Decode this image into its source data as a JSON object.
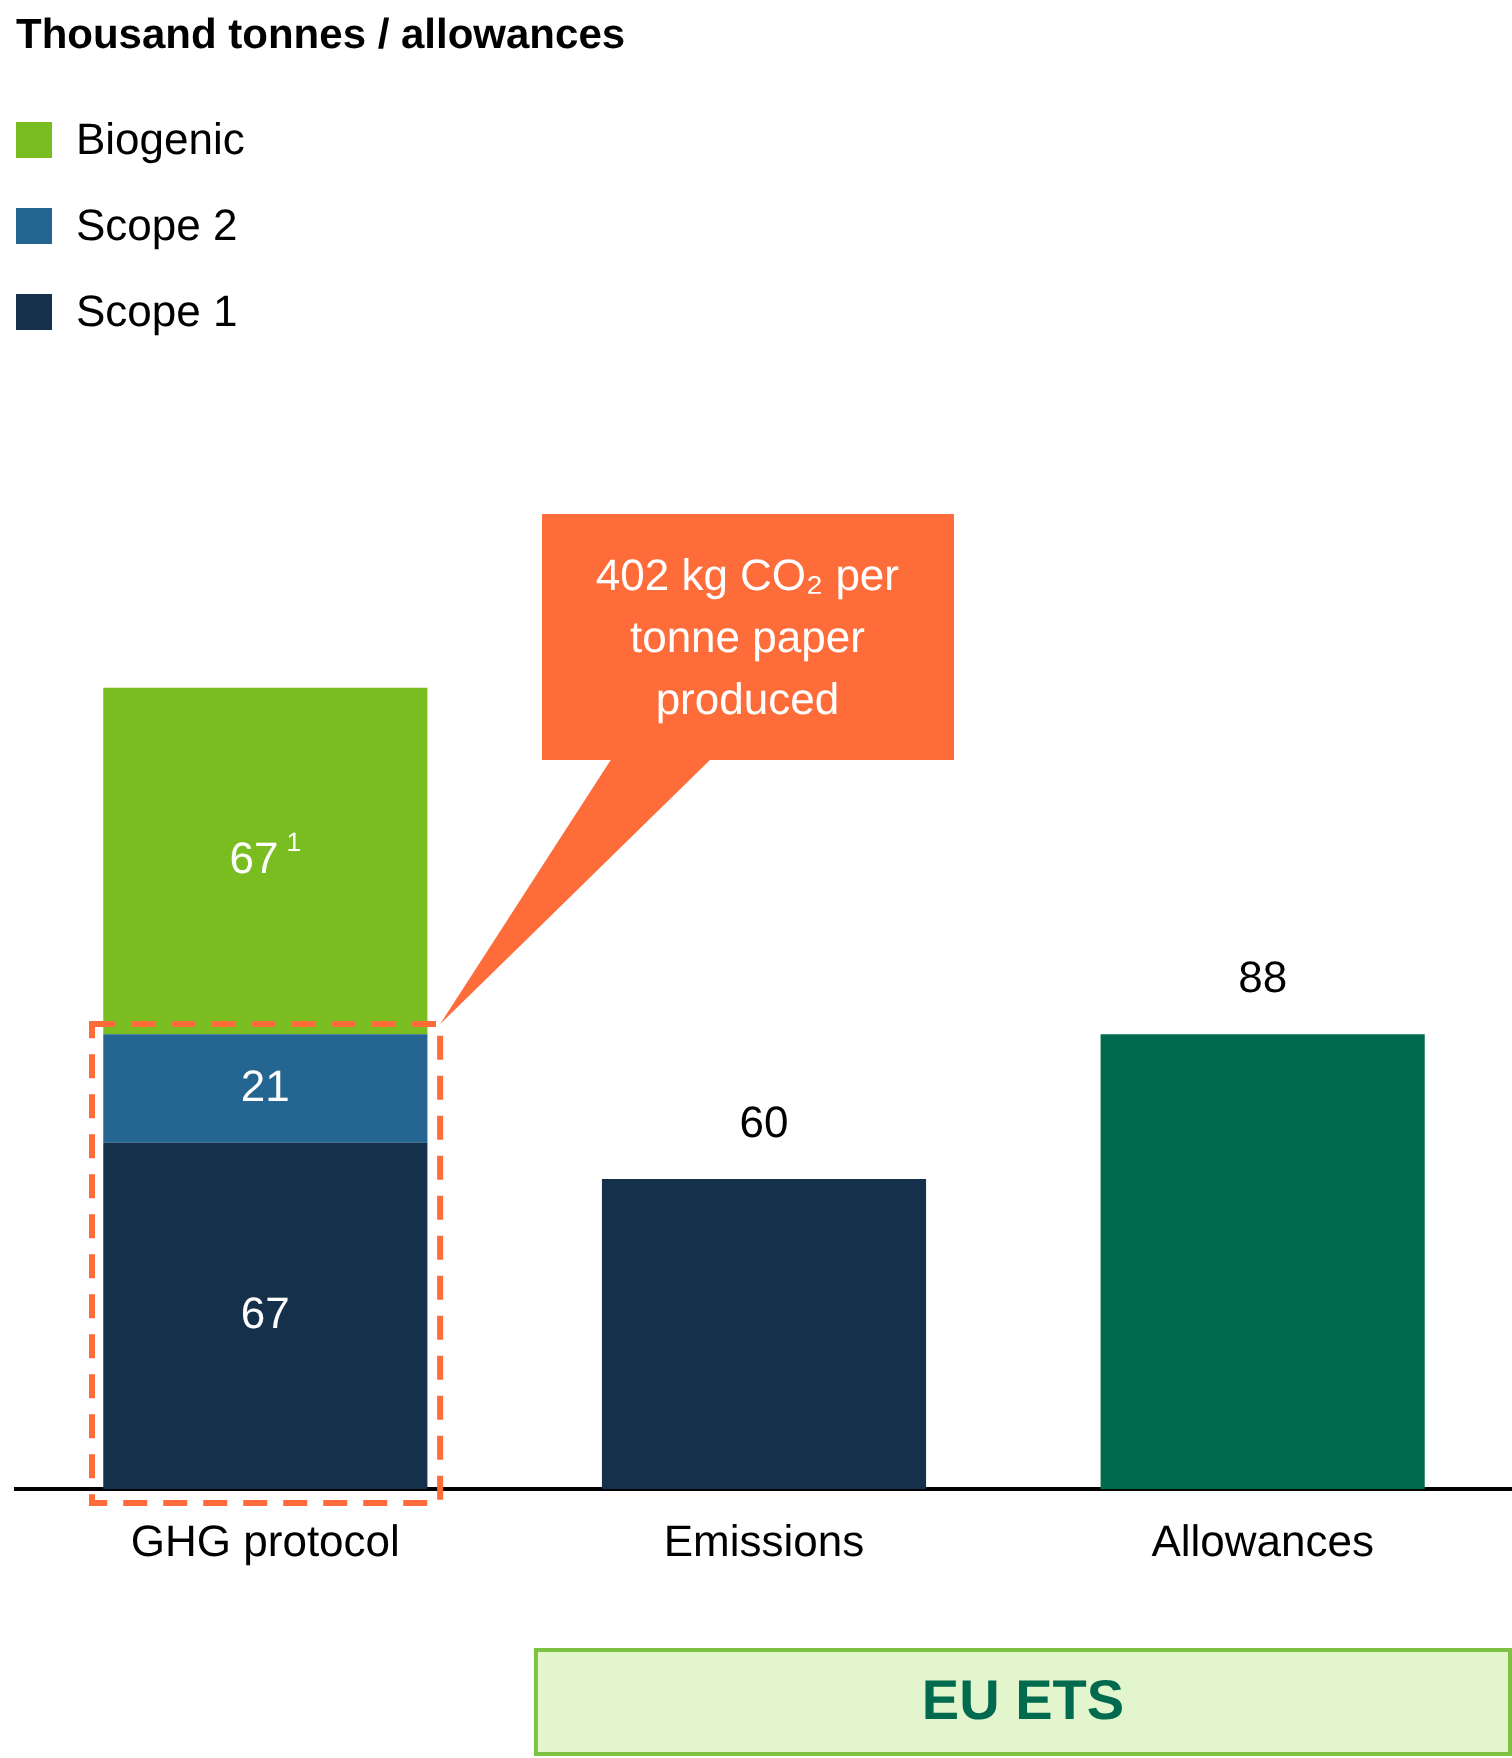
{
  "chart_data": {
    "type": "bar",
    "title": "Thousand tonnes / allowances",
    "categories": [
      "GHG protocol",
      "Emissions",
      "Allowances"
    ],
    "stacked": true,
    "legend": "top left",
    "grid": false,
    "series": [
      {
        "name": "Scope 1",
        "color": "#15304b",
        "values": [
          67,
          null,
          null
        ],
        "value_labels": [
          "67",
          null,
          null
        ]
      },
      {
        "name": "Scope 2",
        "color": "#246592",
        "values": [
          21,
          null,
          null
        ],
        "value_labels": [
          "21",
          null,
          null
        ]
      },
      {
        "name": "Biogenic",
        "color": "#7abd20",
        "values": [
          67,
          null,
          null
        ],
        "value_labels": [
          "67$^{1}$",
          null,
          null
        ]
      },
      {
        "colors": [
          "#15304b",
          "#15304b",
          "#006a4e"
        ],
        "values": [
          null,
          60,
          88
        ],
        "value_labels": [
          null,
          "60",
          "88"
        ]
      }
    ],
    "annotations": [
      "402 kg CO₂ per tonne paper produced",
      "EU ETS"
    ]
  }
}
